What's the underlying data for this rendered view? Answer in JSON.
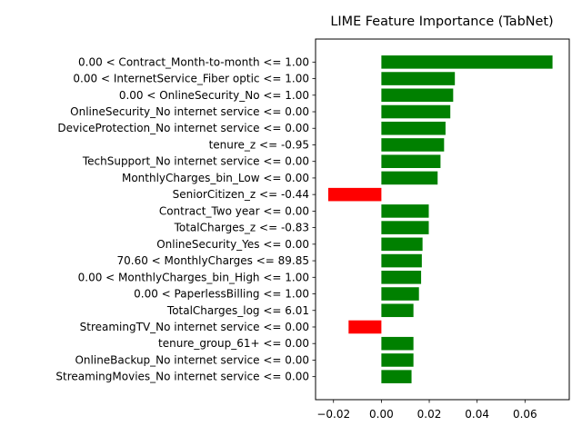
{
  "chart_data": {
    "type": "bar",
    "orientation": "horizontal",
    "title": "LIME Feature Importance (TabNet)",
    "xlabel": "",
    "ylabel": "",
    "xlim": [
      -0.0275,
      0.0785
    ],
    "xticks": [
      -0.02,
      0.0,
      0.02,
      0.04,
      0.06
    ],
    "xtick_labels": [
      "−0.02",
      "0.00",
      "0.02",
      "0.04",
      "0.06"
    ],
    "grid": false,
    "legend": "none",
    "positive_color": "#008000",
    "negative_color": "#ff0000",
    "categories": [
      "0.00 < Contract_Month-to-month <= 1.00",
      "0.00 < InternetService_Fiber optic <= 1.00",
      "0.00 < OnlineSecurity_No <= 1.00",
      "OnlineSecurity_No internet service <= 0.00",
      "DeviceProtection_No internet service <= 0.00",
      "tenure_z <= -0.95",
      "TechSupport_No internet service <= 0.00",
      "MonthlyCharges_bin_Low <= 0.00",
      "SeniorCitizen_z <= -0.44",
      "Contract_Two year <= 0.00",
      "TotalCharges_z <= -0.83",
      "OnlineSecurity_Yes <= 0.00",
      "70.60 < MonthlyCharges <= 89.85",
      "0.00 < MonthlyCharges_bin_High <= 1.00",
      "0.00 < PaperlessBilling <= 1.00",
      "TotalCharges_log <= 6.01",
      "StreamingTV_No internet service <= 0.00",
      "tenure_group_61+ <= 0.00",
      "OnlineBackup_No internet service <= 0.00",
      "StreamingMovies_No internet service <= 0.00"
    ],
    "values": [
      0.0715,
      0.0307,
      0.03,
      0.0288,
      0.0268,
      0.0262,
      0.0247,
      0.0235,
      -0.0222,
      0.0198,
      0.0198,
      0.0172,
      0.0169,
      0.0166,
      0.0157,
      0.0134,
      -0.0137,
      0.0134,
      0.0134,
      0.0126
    ]
  }
}
